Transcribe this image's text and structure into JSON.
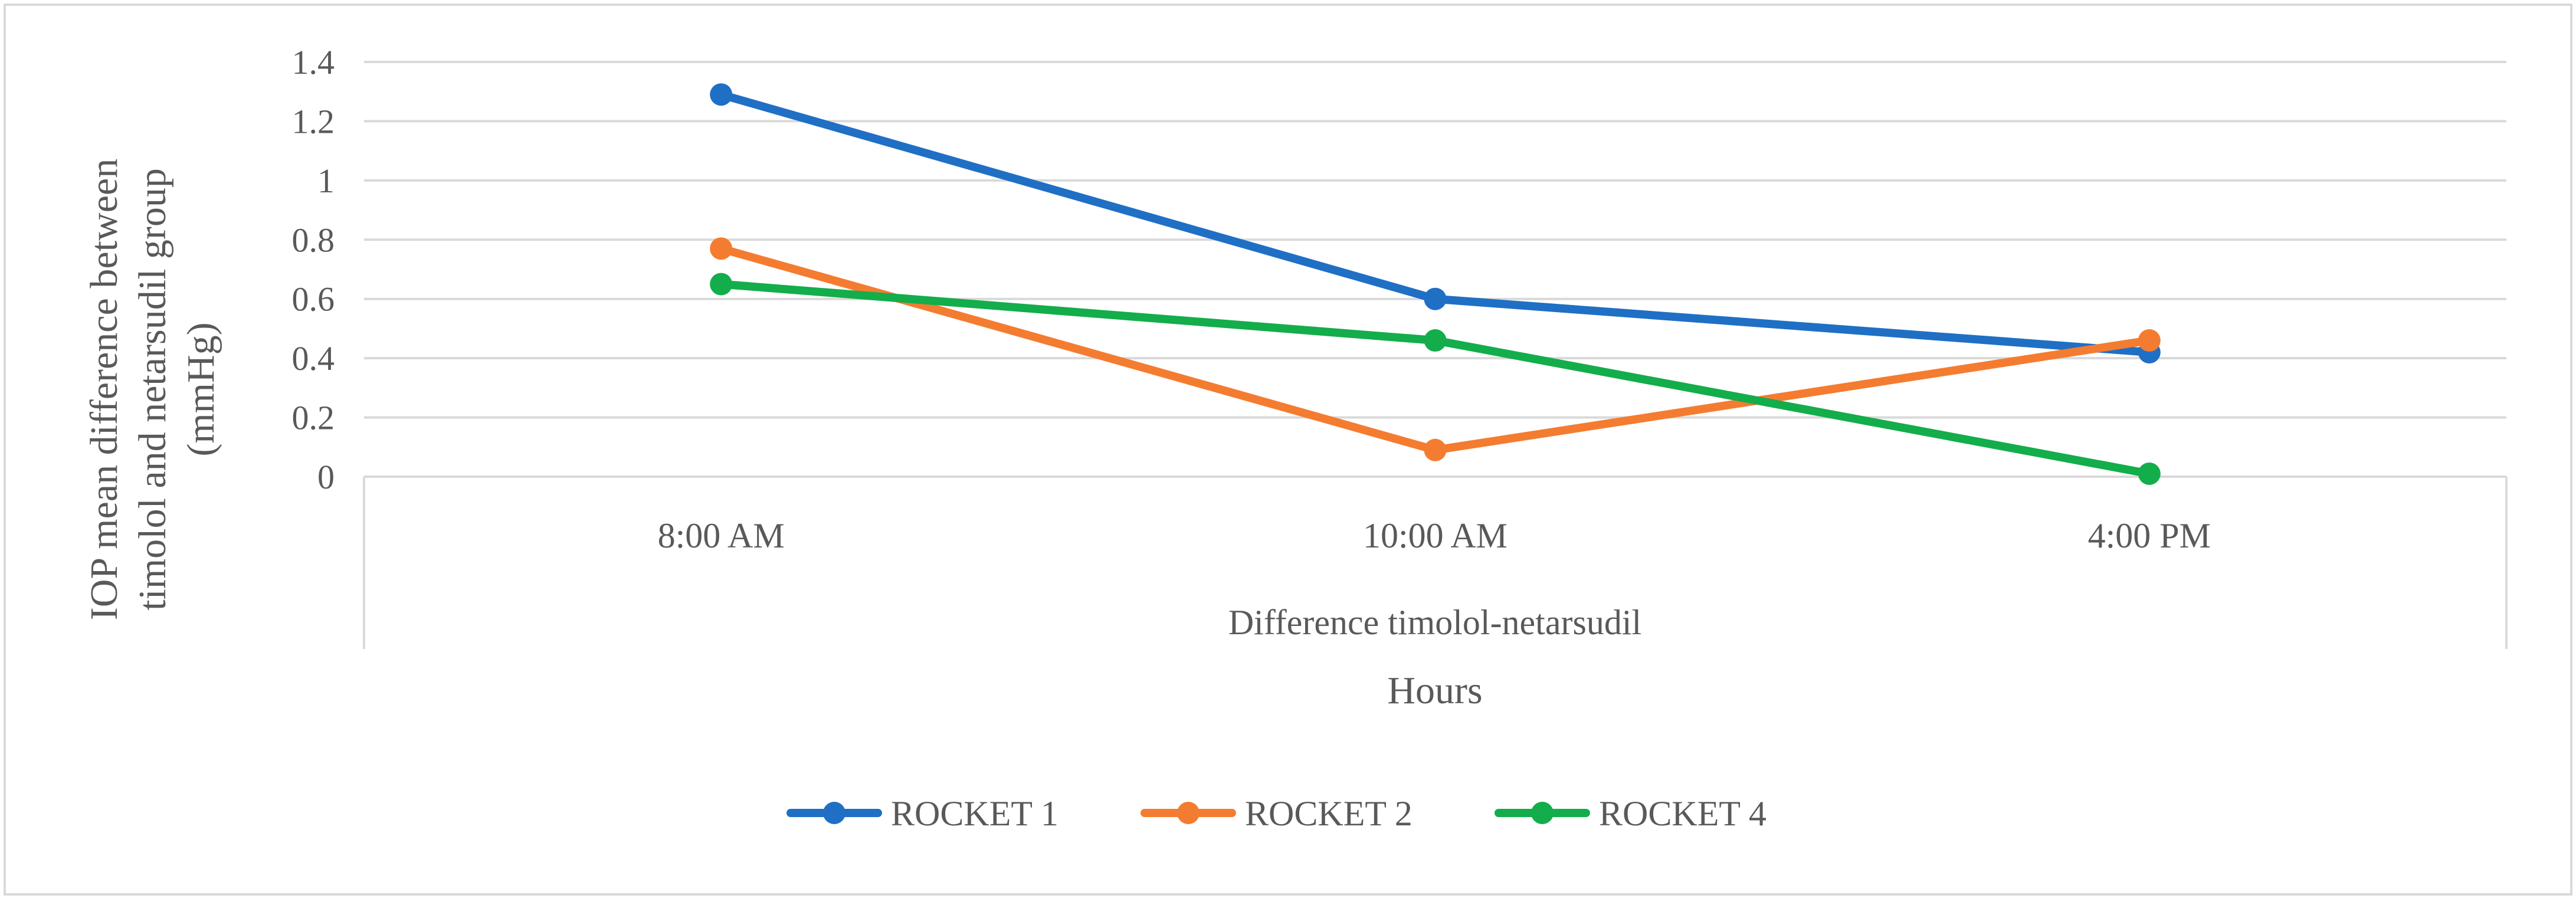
{
  "chart_data": {
    "type": "line",
    "title": "",
    "categories": [
      "8:00 AM",
      "10:00 AM",
      "4:00 PM"
    ],
    "group_label": "Difference timolol-netarsudil",
    "xlabel": "Hours",
    "ylabel_lines": [
      "IOP mean difference between",
      "timolol and netarsudil group",
      "(mmHg)"
    ],
    "ylim": [
      0,
      1.4
    ],
    "yticks": [
      0,
      0.2,
      0.4,
      0.6,
      0.8,
      1,
      1.2,
      1.4
    ],
    "ytick_labels": [
      "0",
      "0.2",
      "0.4",
      "0.6",
      "0.8",
      "1",
      "1.2",
      "1.4"
    ],
    "grid": true,
    "legend_position": "bottom",
    "series": [
      {
        "name": "ROCKET 1",
        "color": "#1F6FC5",
        "values": [
          1.29,
          0.6,
          0.42
        ]
      },
      {
        "name": "ROCKET 2",
        "color": "#F47C30",
        "values": [
          0.77,
          0.09,
          0.46
        ]
      },
      {
        "name": "ROCKET 4",
        "color": "#13AD4B",
        "values": [
          0.65,
          0.46,
          0.01
        ]
      }
    ]
  }
}
